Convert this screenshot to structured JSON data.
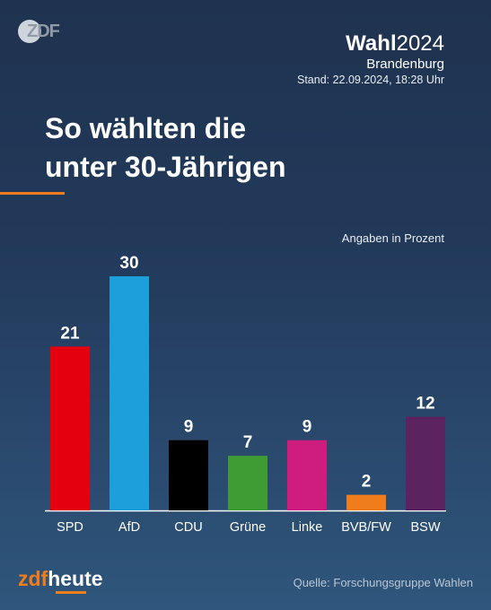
{
  "header": {
    "logo": "ZDF",
    "title_bold": "Wahl",
    "title_year": "2024",
    "region": "Brandenburg",
    "stand": "Stand: 22.09.2024, 18:28 Uhr"
  },
  "headline_line1": "So wählten die",
  "headline_line2": "unter 30-Jährigen",
  "unit_note": "Angaben in Prozent",
  "footer": {
    "logo_zdf": "zdf",
    "logo_heute": "heute",
    "source": "Quelle: Forschungsgruppe Wahlen"
  },
  "colors": {
    "accent": "#f07d1c"
  },
  "chart_data": {
    "type": "bar",
    "categories": [
      "SPD",
      "AfD",
      "CDU",
      "Grüne",
      "Linke",
      "BVB/FW",
      "BSW"
    ],
    "values": [
      21,
      30,
      9,
      7,
      9,
      2,
      12
    ],
    "colors": [
      "#e3000f",
      "#1d9fdb",
      "#000000",
      "#3f9c35",
      "#cf1c7f",
      "#f07d1c",
      "#5b2360"
    ],
    "ylim": [
      0,
      30
    ],
    "grid": false,
    "legend": "none"
  }
}
